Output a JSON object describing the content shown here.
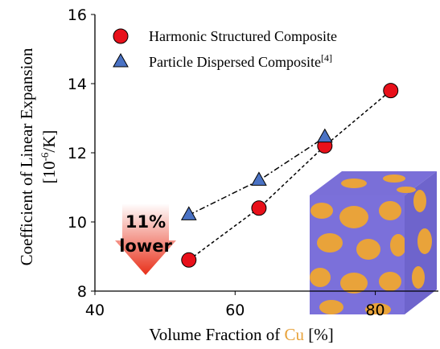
{
  "chart_data": {
    "type": "scatter",
    "x_label": {
      "text": "Volume Fraction of",
      "highlight": "Cu",
      "highlight_color": "#e8a33c",
      "unit": "[%]"
    },
    "y_label": {
      "line1": "Coefficient of Linear Expansion",
      "pre": "[10",
      "sup": "-6",
      "post": "/K]"
    },
    "xlim": [
      40,
      89
    ],
    "xticks": [
      40,
      60,
      80
    ],
    "ylim": [
      8,
      16
    ],
    "yticks": [
      8,
      10,
      12,
      14,
      16
    ],
    "series": [
      {
        "name": "Harmonic Structured Composite",
        "color": "#e8101a",
        "marker": "circle",
        "line_style": "dashed",
        "x": [
          53.4,
          63.4,
          72.8,
          82.2
        ],
        "values": [
          8.9,
          10.4,
          12.2,
          13.8
        ]
      },
      {
        "name": "Particle Dispersed Composite",
        "name_sup": "[4]",
        "color": "#4a72c4",
        "marker": "triangle",
        "line_style": "dashdot",
        "x": [
          53.4,
          63.4,
          72.8
        ],
        "values": [
          10.2,
          11.2,
          12.45
        ]
      }
    ],
    "annotation": {
      "lines": [
        "11%",
        "lower"
      ]
    }
  }
}
